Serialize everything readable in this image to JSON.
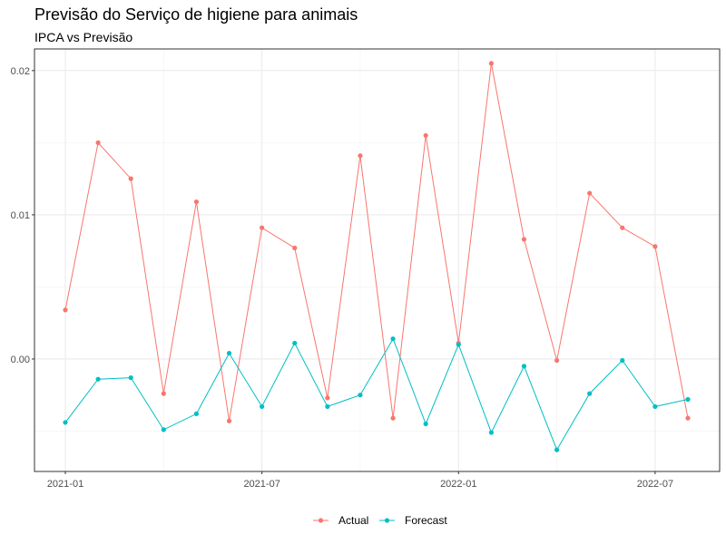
{
  "chart_data": {
    "type": "line",
    "title": "Previsão do Serviço de higiene para animais",
    "subtitle": "IPCA vs Previsão",
    "xlabel": "",
    "ylabel": "",
    "grid": true,
    "legend_position": "bottom",
    "x": [
      "2021-01",
      "2021-02",
      "2021-03",
      "2021-04",
      "2021-05",
      "2021-06",
      "2021-07",
      "2021-08",
      "2021-09",
      "2021-10",
      "2021-11",
      "2021-12",
      "2022-01",
      "2022-02",
      "2022-03",
      "2022-04",
      "2022-05",
      "2022-06",
      "2022-07",
      "2022-08"
    ],
    "x_ticks": [
      "2021-01",
      "2021-07",
      "2022-01",
      "2022-07"
    ],
    "y_ticks": [
      "0.00",
      "0.01",
      "0.02"
    ],
    "ylim": [
      -0.0078,
      0.0215
    ],
    "series": [
      {
        "name": "Actual",
        "color": "#F8766D",
        "values": [
          0.0034,
          0.015,
          0.0125,
          -0.0024,
          0.0109,
          -0.0043,
          0.0091,
          0.0077,
          -0.0027,
          0.0141,
          -0.0041,
          0.0155,
          0.0011,
          0.0205,
          0.0083,
          -0.0001,
          0.0115,
          0.0091,
          0.0078,
          -0.0041
        ]
      },
      {
        "name": "Forecast",
        "color": "#00BFC4",
        "values": [
          -0.0044,
          -0.0014,
          -0.0013,
          -0.0049,
          -0.0038,
          0.0004,
          -0.0033,
          0.0011,
          -0.0033,
          -0.0025,
          0.0014,
          -0.0045,
          0.001,
          -0.0051,
          -0.0005,
          -0.0063,
          -0.0024,
          -0.0001,
          -0.0033,
          -0.0028
        ]
      }
    ]
  }
}
